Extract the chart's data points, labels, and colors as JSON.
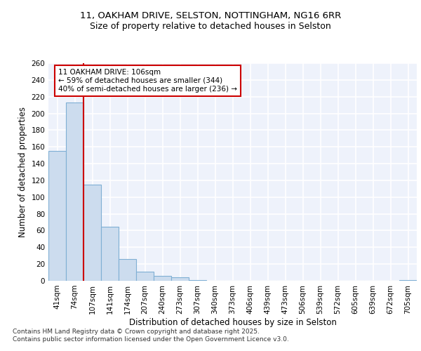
{
  "title_line1": "11, OAKHAM DRIVE, SELSTON, NOTTINGHAM, NG16 6RR",
  "title_line2": "Size of property relative to detached houses in Selston",
  "xlabel": "Distribution of detached houses by size in Selston",
  "ylabel": "Number of detached properties",
  "categories": [
    "41sqm",
    "74sqm",
    "107sqm",
    "141sqm",
    "174sqm",
    "207sqm",
    "240sqm",
    "273sqm",
    "307sqm",
    "340sqm",
    "373sqm",
    "406sqm",
    "439sqm",
    "473sqm",
    "506sqm",
    "539sqm",
    "572sqm",
    "605sqm",
    "639sqm",
    "672sqm",
    "705sqm"
  ],
  "values": [
    155,
    213,
    115,
    65,
    26,
    11,
    6,
    4,
    1,
    0,
    0,
    0,
    0,
    0,
    0,
    0,
    0,
    0,
    0,
    0,
    1
  ],
  "bar_color": "#ccdcee",
  "bar_edge_color": "#7fafd4",
  "bar_edge_width": 0.8,
  "vline_x": 1.5,
  "vline_color": "#cc0000",
  "annotation_text": "11 OAKHAM DRIVE: 106sqm\n← 59% of detached houses are smaller (344)\n40% of semi-detached houses are larger (236) →",
  "annotation_box_color": "#ffffff",
  "annotation_box_edge_color": "#cc0000",
  "ylim": [
    0,
    260
  ],
  "yticks": [
    0,
    20,
    40,
    60,
    80,
    100,
    120,
    140,
    160,
    180,
    200,
    220,
    240,
    260
  ],
  "background_color": "#eef2fb",
  "grid_color": "#ffffff",
  "footer_text": "Contains HM Land Registry data © Crown copyright and database right 2025.\nContains public sector information licensed under the Open Government Licence v3.0.",
  "title_fontsize": 9.5,
  "subtitle_fontsize": 9,
  "axis_label_fontsize": 8.5,
  "tick_fontsize": 7.5,
  "annotation_fontsize": 7.5,
  "footer_fontsize": 6.5
}
